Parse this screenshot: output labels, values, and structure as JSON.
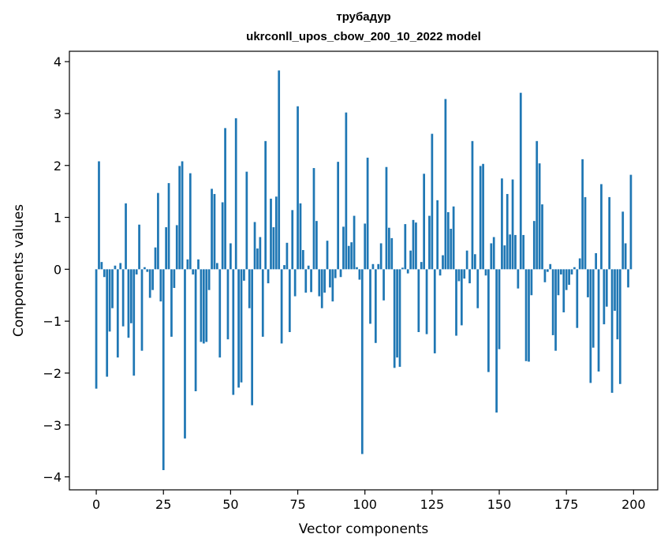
{
  "chart_data": {
    "type": "bar",
    "title": "трубадур",
    "subtitle": "ukrconll_upos_cbow_200_10_2022 model",
    "xlabel": "Vector components",
    "ylabel": "Components values",
    "xlim": [
      -10,
      209
    ],
    "ylim": [
      -4.25,
      4.2
    ],
    "xticks": [
      0,
      25,
      50,
      75,
      100,
      125,
      150,
      175,
      200
    ],
    "yticks": [
      -4,
      -3,
      -2,
      -1,
      0,
      1,
      2,
      3,
      4
    ],
    "grid": false,
    "bar_color": "#1f77b4",
    "values": [
      -2.3,
      2.08,
      0.14,
      -0.15,
      -2.07,
      -1.2,
      -0.75,
      0.07,
      -1.7,
      0.12,
      -1.1,
      1.27,
      -1.32,
      -1.04,
      -2.05,
      -0.1,
      0.86,
      -1.57,
      0.04,
      -0.05,
      -0.55,
      -0.4,
      0.42,
      1.47,
      -0.62,
      -3.87,
      0.81,
      1.66,
      -1.3,
      -0.36,
      0.85,
      1.99,
      2.08,
      -3.26,
      0.19,
      1.85,
      -0.1,
      -2.35,
      0.19,
      -1.4,
      -1.43,
      -1.4,
      -0.4,
      1.55,
      1.45,
      0.12,
      -1.7,
      1.29,
      2.72,
      -1.35,
      0.5,
      -2.42,
      2.91,
      -2.28,
      -2.18,
      -0.22,
      1.88,
      -0.75,
      -2.62,
      0.91,
      0.4,
      0.62,
      -1.3,
      2.47,
      -0.27,
      1.36,
      0.81,
      1.4,
      3.83,
      -1.43,
      0.08,
      0.51,
      -1.21,
      1.14,
      -0.52,
      3.14,
      1.27,
      0.37,
      -0.45,
      0.07,
      -0.44,
      1.95,
      0.93,
      -0.52,
      -0.75,
      -0.45,
      0.55,
      -0.35,
      -0.62,
      -0.17,
      2.07,
      -0.15,
      0.82,
      3.02,
      0.45,
      0.52,
      1.03,
      0.04,
      -0.2,
      -3.56,
      0.88,
      2.15,
      -1.05,
      0.1,
      -1.42,
      0.1,
      0.5,
      -0.6,
      1.97,
      0.8,
      0.6,
      -1.9,
      -1.7,
      -1.88,
      0.03,
      0.87,
      -0.08,
      0.36,
      0.95,
      0.9,
      -1.21,
      0.14,
      1.84,
      -1.25,
      1.03,
      2.61,
      -1.62,
      1.33,
      -0.12,
      0.27,
      3.28,
      1.1,
      0.78,
      1.21,
      -1.28,
      -0.23,
      -1.08,
      -0.18,
      0.36,
      -0.27,
      2.47,
      0.29,
      -0.75,
      1.99,
      2.03,
      -0.12,
      -1.98,
      0.5,
      0.62,
      -2.76,
      -1.54,
      1.75,
      0.46,
      1.45,
      0.67,
      1.73,
      0.66,
      -0.37,
      3.4,
      0.66,
      -1.77,
      -1.78,
      -0.5,
      0.93,
      2.47,
      2.04,
      1.25,
      -0.25,
      -0.05,
      0.1,
      -1.27,
      -1.57,
      -0.5,
      -0.1,
      -0.83,
      -0.4,
      -0.3,
      -0.1,
      0.04,
      -1.13,
      0.21,
      2.12,
      1.39,
      -0.54,
      -2.19,
      -1.51,
      0.31,
      -1.97,
      1.64,
      -1.06,
      -0.72,
      1.39,
      -2.38,
      -0.8,
      -1.35,
      -2.21,
      1.11,
      0.5,
      -0.35,
      1.82
    ]
  }
}
